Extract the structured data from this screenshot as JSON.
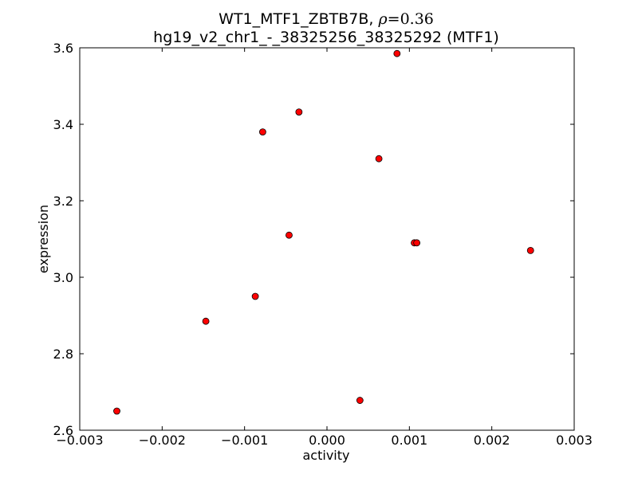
{
  "chart_data": {
    "type": "scatter",
    "title_parts": {
      "main": "WT1_MTF1_ZBTB7B, ",
      "rho_symbol": "ρ",
      "rho_value": "=0.36"
    },
    "subtitle": "hg19_v2_chr1_-_38325256_38325292 (MTF1)",
    "xlabel": "activity",
    "ylabel": "expression",
    "xlim": [
      -0.003,
      0.003
    ],
    "ylim": [
      2.6,
      3.6
    ],
    "xticks": [
      -0.003,
      -0.002,
      -0.001,
      0.0,
      0.001,
      0.002,
      0.003
    ],
    "xtick_labels": [
      "−0.003",
      "−0.002",
      "−0.001",
      "0.000",
      "0.001",
      "0.002",
      "0.003"
    ],
    "yticks": [
      2.6,
      2.8,
      3.0,
      3.2,
      3.4,
      3.6
    ],
    "ytick_labels": [
      "2.6",
      "2.8",
      "3.0",
      "3.2",
      "3.4",
      "3.6"
    ],
    "grid": false,
    "marker_color": "#ff0000",
    "marker_edge": "#000000",
    "points": [
      {
        "x": -0.00255,
        "y": 2.65
      },
      {
        "x": -0.00147,
        "y": 2.885
      },
      {
        "x": -0.00087,
        "y": 2.95
      },
      {
        "x": -0.00078,
        "y": 3.38
      },
      {
        "x": -0.00046,
        "y": 3.11
      },
      {
        "x": -0.00034,
        "y": 3.432
      },
      {
        "x": 0.0004,
        "y": 2.678
      },
      {
        "x": 0.00063,
        "y": 3.31
      },
      {
        "x": 0.00085,
        "y": 3.585
      },
      {
        "x": 0.00106,
        "y": 3.09
      },
      {
        "x": 0.00109,
        "y": 3.09
      },
      {
        "x": 0.00247,
        "y": 3.07
      }
    ]
  }
}
